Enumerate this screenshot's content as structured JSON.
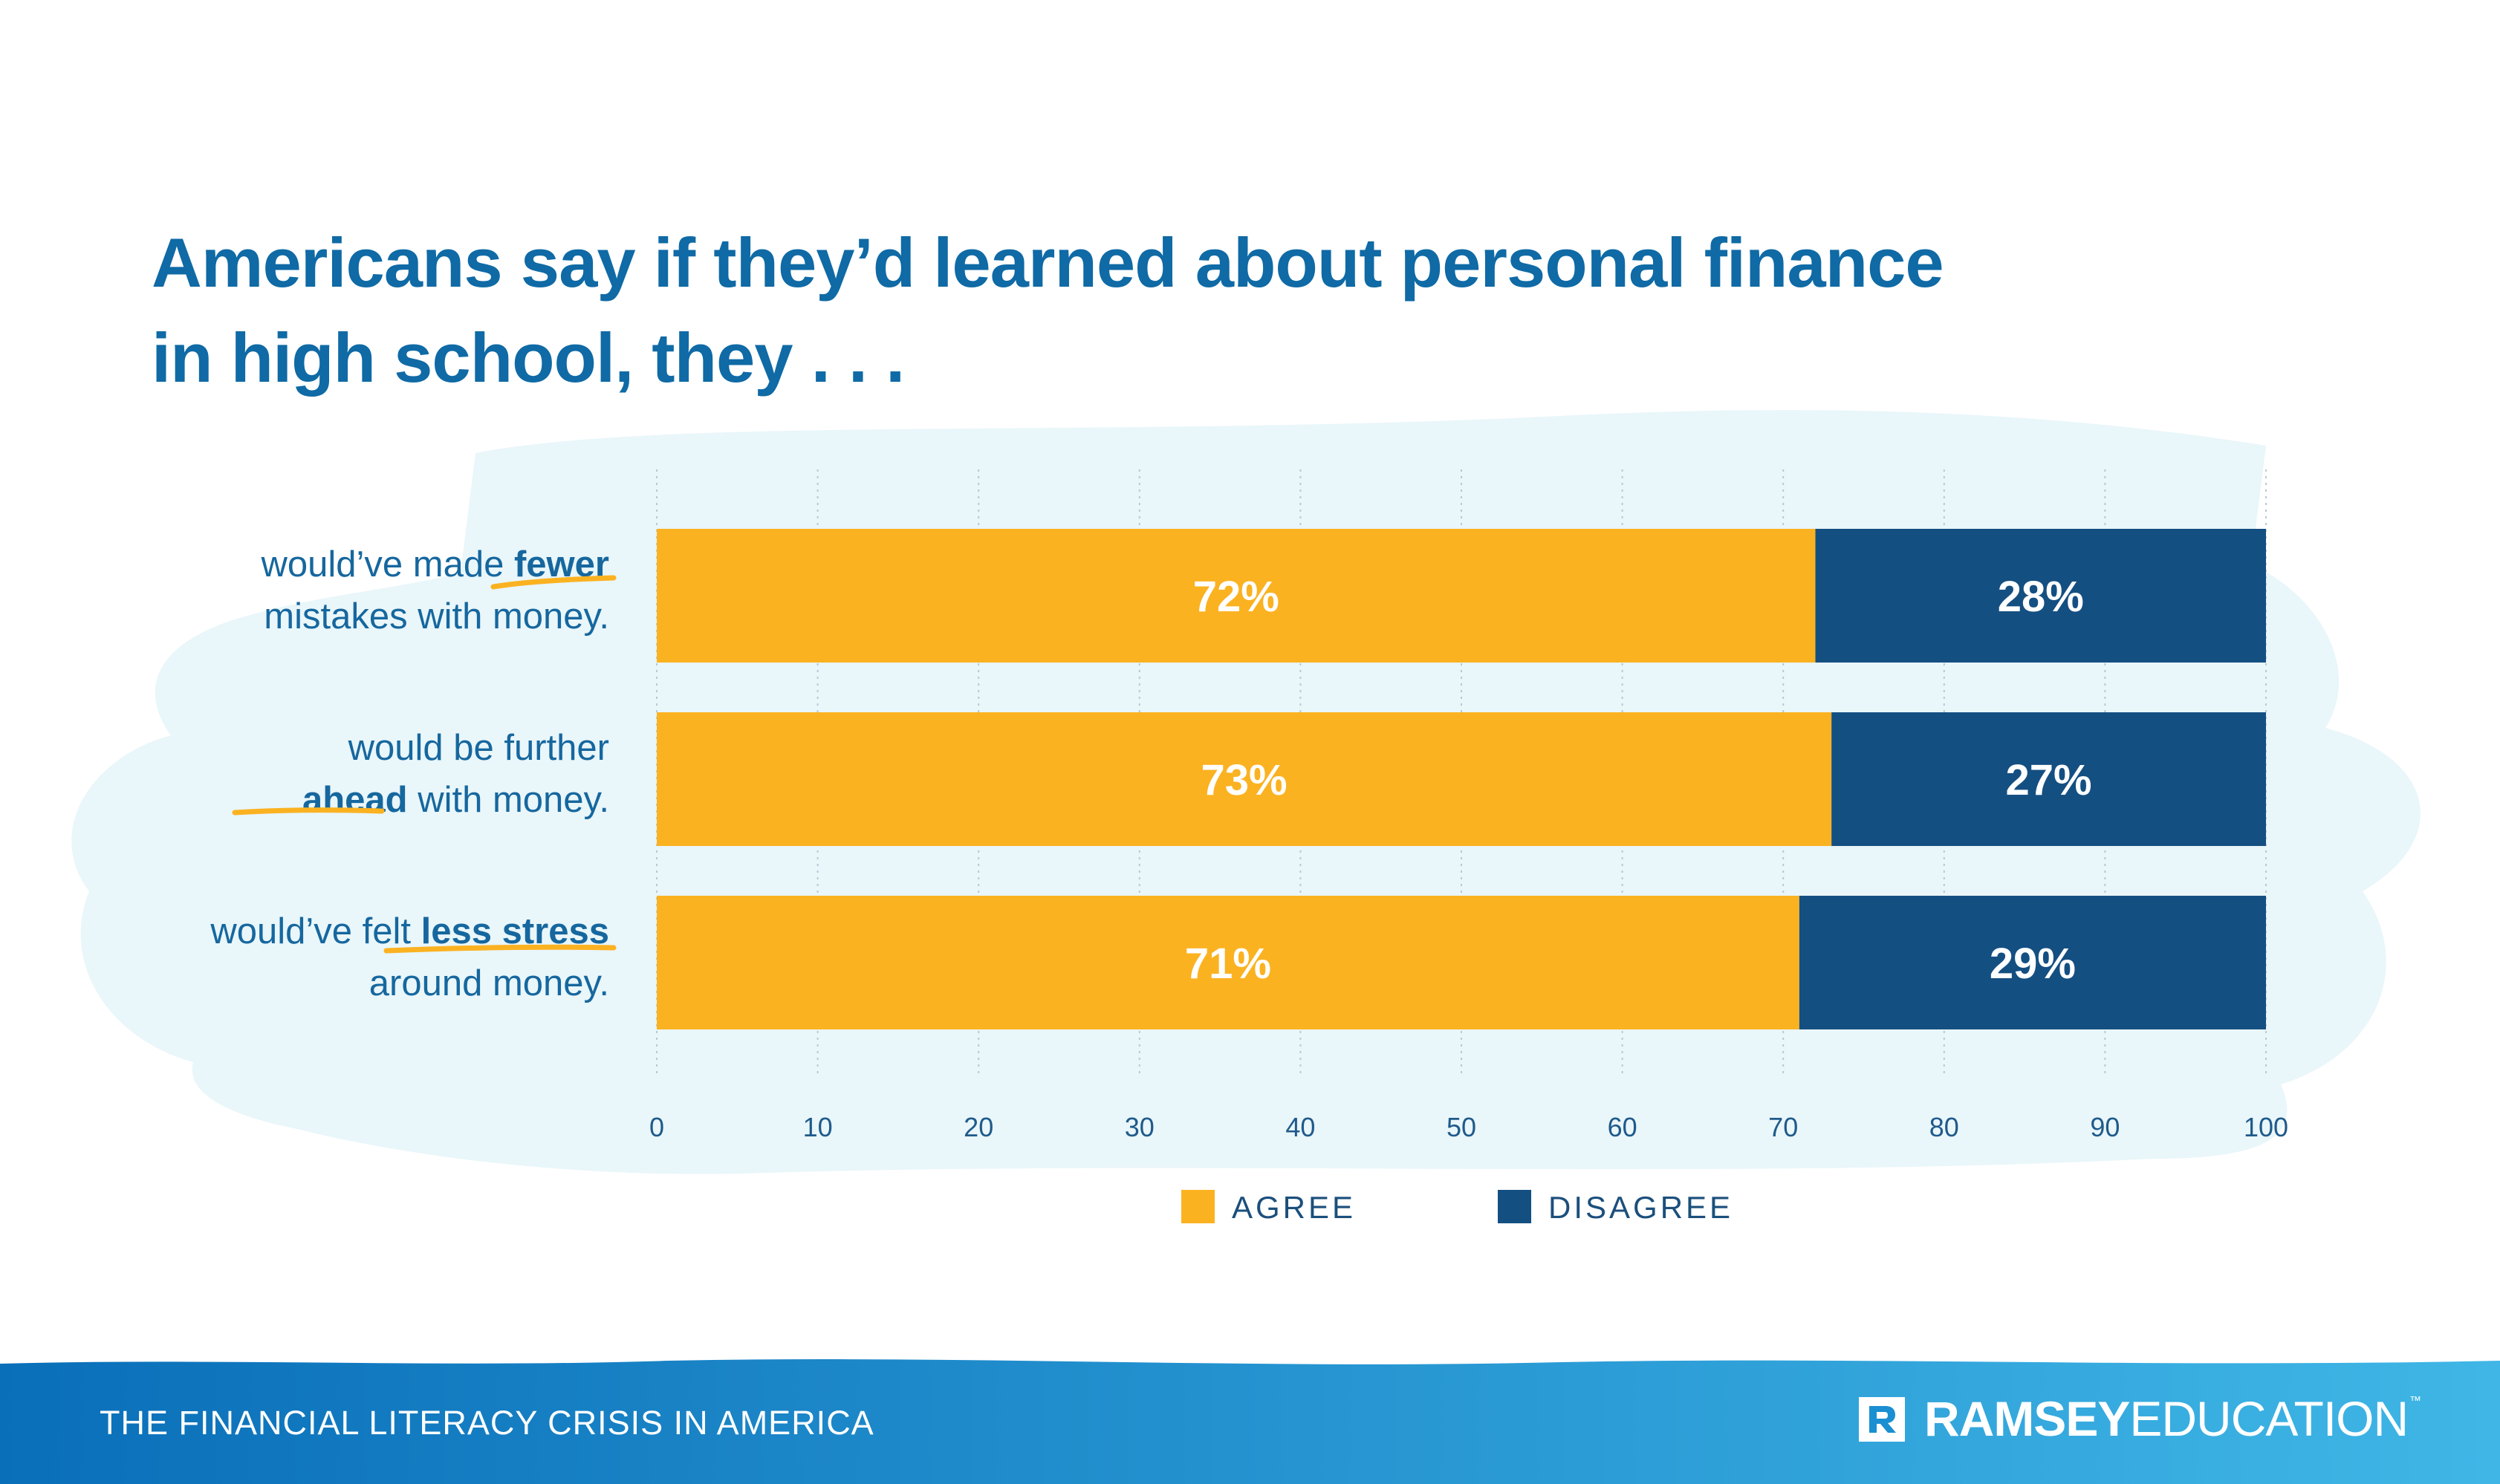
{
  "title_lines": [
    "Americans say if they’d learned about personal finance",
    "in high school, they . . ."
  ],
  "chart_data": {
    "type": "bar",
    "orientation": "horizontal",
    "stacked": true,
    "categories": [
      "would’ve made fewer mistakes with money.",
      "would be further ahead with money.",
      "would’ve felt less stress around money."
    ],
    "category_label_lines": [
      [
        [
          "would’ve made ",
          "fewer"
        ],
        [
          "mistakes with money.",
          ""
        ]
      ],
      [
        [
          "would be further",
          ""
        ],
        [
          "ahead",
          " with money."
        ]
      ],
      [
        [
          "would’ve felt ",
          "less stress"
        ],
        [
          "around money.",
          ""
        ]
      ]
    ],
    "series": [
      {
        "name": "AGREE",
        "values": [
          72,
          73,
          71
        ],
        "labels": [
          "72%",
          "73%",
          "71%"
        ],
        "color": "#fbb221"
      },
      {
        "name": "DISAGREE",
        "values": [
          28,
          27,
          29
        ],
        "labels": [
          "28%",
          "27%",
          "29%"
        ],
        "color": "#144f82"
      }
    ],
    "xlim": [
      0,
      100
    ],
    "xticks": [
      0,
      10,
      20,
      30,
      40,
      50,
      60,
      70,
      80,
      90,
      100
    ],
    "grid": true,
    "legend_position": "bottom-center"
  },
  "footer": {
    "text": "THE FINANCIAL LITERACY CRISIS IN AMERICA",
    "logo_bold": "RAMSEY",
    "logo_regular": "EDUCATION",
    "logo_tm": "™"
  },
  "colors": {
    "title": "#0f6aa5",
    "label_text": "#16679e",
    "underline": "#fbb221",
    "wash": "#e9f6fa",
    "footer_start": "#0a6fb9",
    "footer_end": "#3fb6e6"
  }
}
